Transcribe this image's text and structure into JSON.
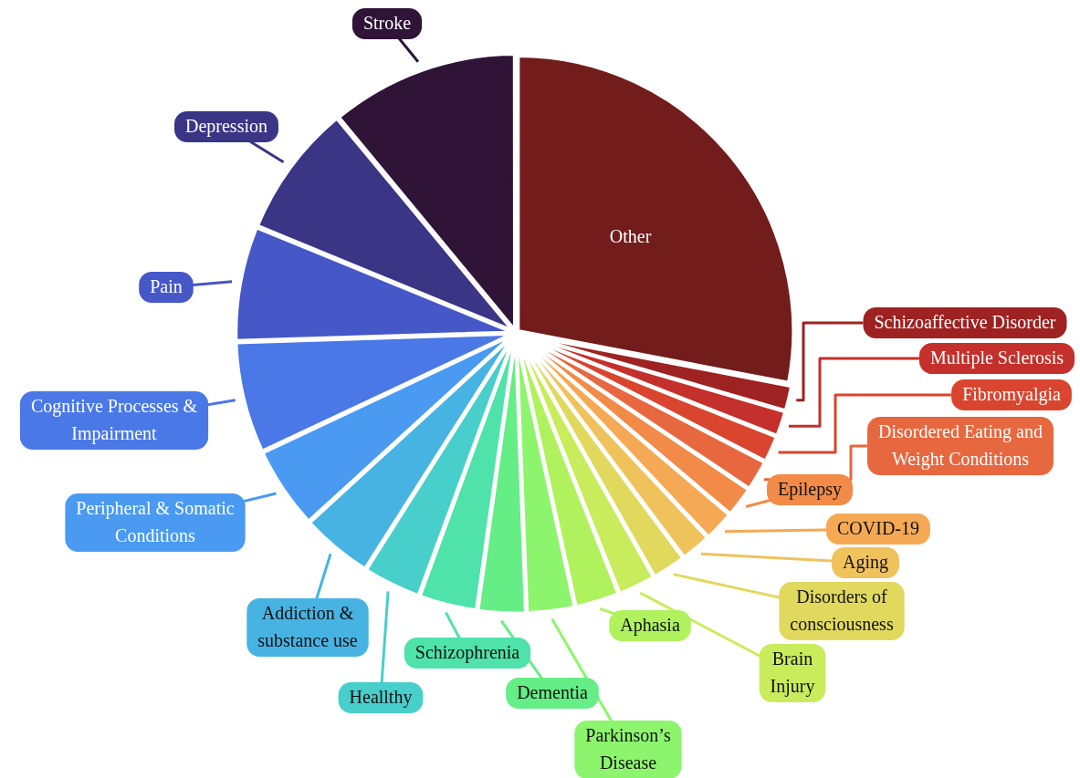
{
  "chart_data": {
    "type": "pie",
    "categories": [
      "Other",
      "Schizoaffective Disorder",
      "Multiple Sclerosis",
      "Fibromyalgia",
      "Disordered Eating and Weight Conditions",
      "Epilepsy",
      "COVID-19",
      "Aging",
      "Disorders of consciousness",
      "Brain Injury",
      "Aphasia",
      "Parkinson’s Disease",
      "Dementia",
      "Schizophrenia",
      "Heallthy",
      "Addiction & substance use",
      "Peripheral & Somatic Conditions",
      "Cognitive Processes & Impairment",
      "Pain",
      "Depression",
      "Stroke"
    ],
    "values": [
      28,
      1.5,
      1.5,
      1.6,
      1.8,
      1.8,
      1.8,
      1.8,
      2,
      2.2,
      2.6,
      2.8,
      2.8,
      3.4,
      3.4,
      4.2,
      4.8,
      6.5,
      6.7,
      7.8,
      11
    ],
    "colors": [
      "#731c1c",
      "#9e2221",
      "#c4302b",
      "#d9452f",
      "#e7673f",
      "#f28a48",
      "#f5a954",
      "#efc25c",
      "#e0d95e",
      "#c9ec5c",
      "#b0f25e",
      "#8df56d",
      "#65ed86",
      "#4fe2ab",
      "#48cfcb",
      "#47b3e3",
      "#4a9af2",
      "#4a78e6",
      "#4657c8",
      "#3b3585",
      "#2f1438"
    ]
  }
}
